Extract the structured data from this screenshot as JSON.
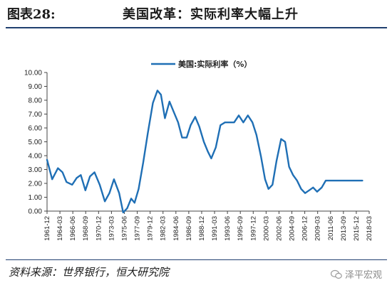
{
  "header": {
    "figure_number": "图表28:",
    "title": "美国改革：实际利率大幅上升"
  },
  "footer": {
    "source": "资料来源：世界银行，恒大研究院",
    "watermark": "泽平宏观"
  },
  "colors": {
    "line": "#1f6fb5",
    "rule": "#1f3f6f"
  },
  "chart_data": {
    "type": "line",
    "title": "",
    "xlabel": "",
    "ylabel": "",
    "ylim": [
      0,
      10
    ],
    "yticks": [
      "0.00",
      "1.00",
      "2.00",
      "3.00",
      "4.00",
      "5.00",
      "6.00",
      "7.00",
      "8.00",
      "9.00",
      "10.00"
    ],
    "x_tick_labels": [
      "1961-12",
      "1964-03",
      "1966-06",
      "1968-09",
      "1970-12",
      "1973-03",
      "1975-06",
      "1977-09",
      "1979-12",
      "1982-03",
      "1984-06",
      "1986-09",
      "1988-12",
      "1991-03",
      "1993-06",
      "1995-09",
      "1997-12",
      "2000-03",
      "2002-06",
      "2004-09",
      "2006-12",
      "2009-03",
      "2011-06",
      "2013-09",
      "2015-12",
      "2018-03"
    ],
    "grid": false,
    "legend_position": "top-center",
    "series": [
      {
        "name": "美国:实际利率（%）",
        "x": [
          1961.9,
          1962.8,
          1963.8,
          1964.6,
          1965.3,
          1966.3,
          1967.1,
          1967.8,
          1968.6,
          1969.4,
          1970.2,
          1971.1,
          1972.0,
          1972.8,
          1973.6,
          1974.5,
          1975.2,
          1975.9,
          1976.6,
          1977.2,
          1977.9,
          1978.7,
          1979.5,
          1980.4,
          1981.2,
          1981.8,
          1982.5,
          1983.3,
          1984.0,
          1984.8,
          1985.5,
          1986.3,
          1987.0,
          1987.8,
          1988.5,
          1989.3,
          1990.0,
          1990.6,
          1991.4,
          1992.2,
          1993.0,
          1993.8,
          1994.6,
          1995.4,
          1996.2,
          1997.0,
          1997.8,
          1998.5,
          1999.3,
          2000.0,
          2000.6,
          2001.3,
          2002.0,
          2002.8,
          2003.5,
          2004.2,
          2004.9,
          2005.6,
          2006.3,
          2007.0,
          2007.7,
          2008.4,
          2009.1,
          2009.9,
          2010.6,
          2011.3,
          2012.0,
          2012.8,
          2013.6,
          2014.2,
          2014.9,
          2015.6,
          2016.3,
          2017.0
        ],
        "values": [
          3.7,
          2.3,
          3.1,
          2.8,
          2.1,
          1.9,
          2.4,
          2.6,
          1.5,
          2.5,
          2.8,
          1.9,
          0.7,
          1.3,
          2.3,
          1.3,
          -0.1,
          0.2,
          0.9,
          0.6,
          1.6,
          3.5,
          5.6,
          7.8,
          8.7,
          8.4,
          6.7,
          7.9,
          7.2,
          6.4,
          5.3,
          5.3,
          6.2,
          6.8,
          6.1,
          5.0,
          4.3,
          3.8,
          4.6,
          6.2,
          6.4,
          6.4,
          6.4,
          6.9,
          6.4,
          6.9,
          6.4,
          5.5,
          3.9,
          2.3,
          1.6,
          1.9,
          3.6,
          5.2,
          5.0,
          3.2,
          2.6,
          2.2,
          1.6,
          1.3,
          1.5,
          1.7,
          1.4,
          1.7,
          2.2,
          2.2,
          2.2,
          2.2,
          2.2,
          2.2,
          2.2,
          2.2,
          2.2,
          2.2
        ]
      }
    ]
  }
}
